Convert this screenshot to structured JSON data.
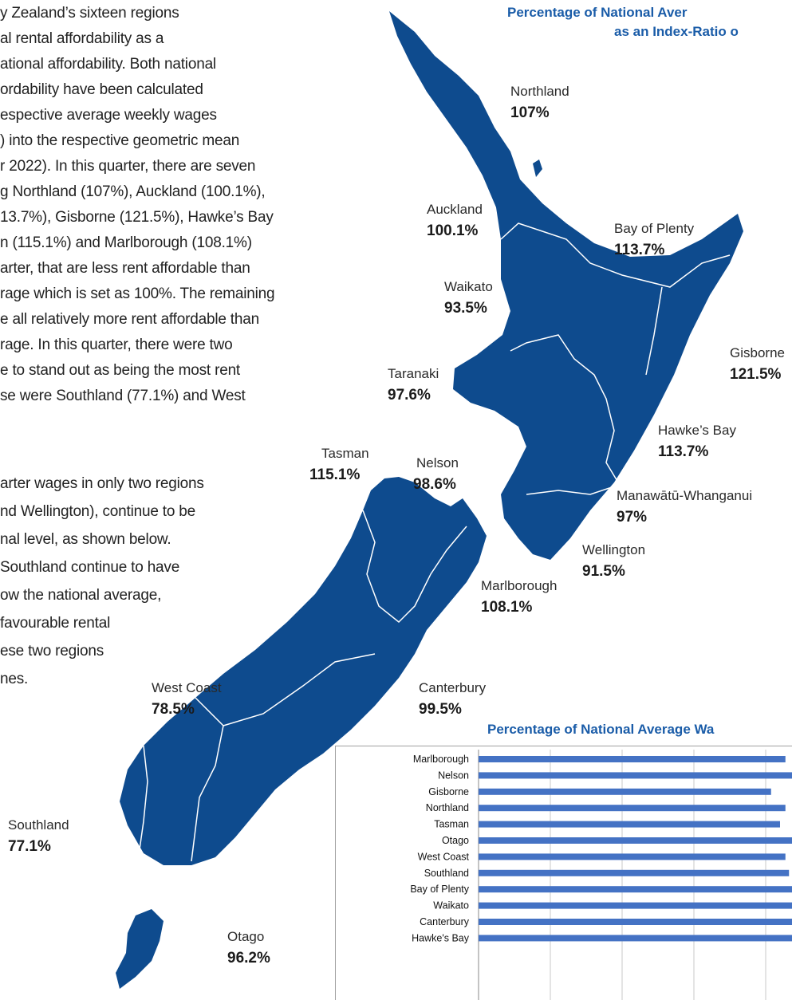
{
  "body": {
    "lines": [
      "y Zealand’s sixteen regions",
      "al rental affordability as a",
      "ational affordability. Both national",
      "ordability have been calculated",
      "espective average weekly wages",
      ") into the respective geometric mean",
      "r 2022). In this quarter, there are seven",
      "g Northland (107%), Auckland (100.1%),",
      "13.7%), Gisborne (121.5%), Hawke’s Bay",
      "n (115.1%) and Marlborough (108.1%)",
      "arter, that are less rent affordable than",
      "rage which is set as 100%. The remaining",
      "e all relatively more rent affordable than",
      "rage. In this quarter, there were two",
      "e to stand out as being the most rent",
      "se were Southland (77.1%) and West",
      "arter wages in only two regions",
      "nd Wellington), continue to be",
      "nal level, as shown below.",
      " Southland continue to have",
      "ow the national average,",
      "favourable rental",
      "ese two regions",
      "nes."
    ]
  },
  "map": {
    "title_lines": [
      "Percentage of National Aver",
      "as an Index-Ratio o"
    ],
    "regions": [
      {
        "name": "Northland",
        "value": "107%"
      },
      {
        "name": "Auckland",
        "value": "100.1%"
      },
      {
        "name": "Bay of Plenty",
        "value": "113.7%"
      },
      {
        "name": "Waikato",
        "value": "93.5%"
      },
      {
        "name": "Gisborne",
        "value": "121.5%"
      },
      {
        "name": "Taranaki",
        "value": "97.6%"
      },
      {
        "name": "Hawke’s Bay",
        "value": "113.7%"
      },
      {
        "name": "Tasman",
        "value": "115.1%"
      },
      {
        "name": "Nelson",
        "value": "98.6%"
      },
      {
        "name": "Manawātū-Whanganui",
        "value": "97%"
      },
      {
        "name": "Wellington",
        "value": "91.5%"
      },
      {
        "name": "Marlborough",
        "value": "108.1%"
      },
      {
        "name": "West Coast",
        "value": "78.5%"
      },
      {
        "name": "Canterbury",
        "value": "99.5%"
      },
      {
        "name": "Southland",
        "value": "77.1%"
      },
      {
        "name": "Otago",
        "value": "96.2%"
      }
    ]
  },
  "chart_data": {
    "type": "bar",
    "title": "Percentage of National Average Wa",
    "categories": [
      "Marlborough",
      "Nelson",
      "Gisborne",
      "Northland",
      "Tasman",
      "Otago",
      "West Coast",
      "Southland",
      "Bay of Plenty",
      "Waikato",
      "Canterbury",
      "Hawke's Bay"
    ],
    "values": [
      85.5,
      90,
      81.5,
      85.5,
      84,
      89,
      85.5,
      86.5,
      89,
      91,
      92,
      88
    ],
    "xlim": [
      0,
      120
    ],
    "color": "#4472c4",
    "grid": true
  }
}
